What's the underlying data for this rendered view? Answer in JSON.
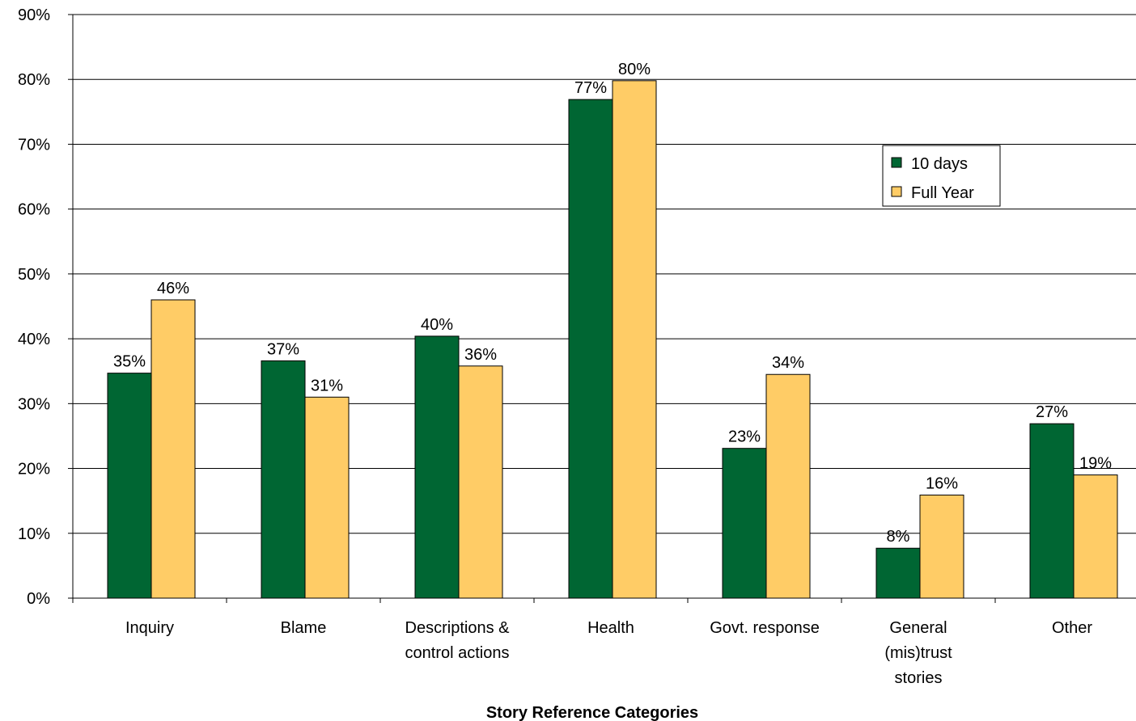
{
  "chart_data": {
    "type": "bar",
    "title": "",
    "xlabel": "Story Reference Categories",
    "ylabel": "",
    "ylim": [
      0,
      90
    ],
    "yticks": [
      "0%",
      "10%",
      "20%",
      "30%",
      "40%",
      "50%",
      "60%",
      "70%",
      "80%",
      "90%"
    ],
    "grid": true,
    "legend_position": "right",
    "categories": [
      [
        "Inquiry"
      ],
      [
        "Blame"
      ],
      [
        "Descriptions &",
        "control actions"
      ],
      [
        "Health"
      ],
      [
        "Govt. response"
      ],
      [
        "General",
        "(mis)trust",
        "stories"
      ],
      [
        "Other"
      ]
    ],
    "series": [
      {
        "name": "10 days",
        "color": "#006633",
        "values": [
          34.7,
          36.6,
          40.4,
          76.9,
          23.1,
          7.7,
          26.9
        ],
        "labels": [
          "35%",
          "37%",
          "40%",
          "77%",
          "23%",
          "8%",
          "27%"
        ]
      },
      {
        "name": "Full Year",
        "color": "#FFCC66",
        "values": [
          46.0,
          31.0,
          35.8,
          79.8,
          34.5,
          15.9,
          19.0
        ],
        "labels": [
          "46%",
          "31%",
          "36%",
          "80%",
          "34%",
          "16%",
          "19%"
        ]
      }
    ]
  }
}
